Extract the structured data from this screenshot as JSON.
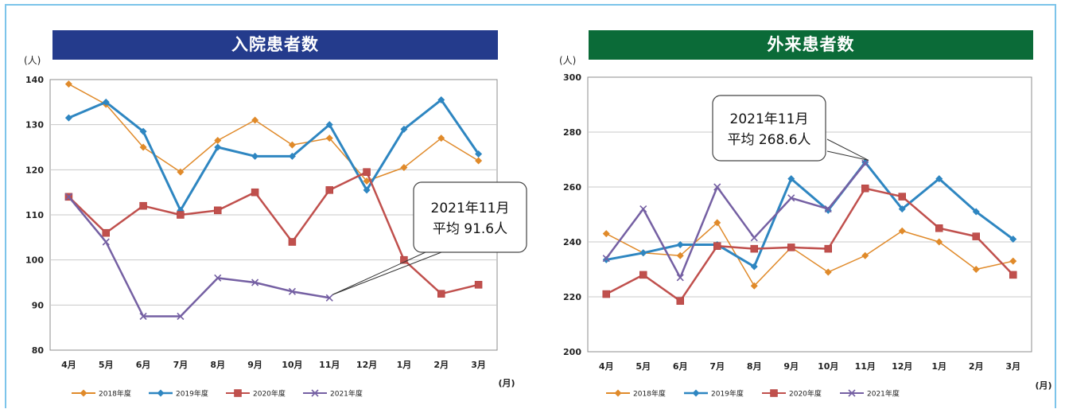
{
  "charts": [
    {
      "banner": "入院患者数",
      "banner_color": "#243b8c",
      "y_unit": "(人)",
      "x_unit": "(月)",
      "callout": [
        "2021年11月",
        "平均 91.6人"
      ]
    },
    {
      "banner": "外来患者数",
      "banner_color": "#0b6b38",
      "y_unit": "(人)",
      "x_unit": "(月)",
      "callout": [
        "2021年11月",
        "平均 268.6人"
      ]
    }
  ],
  "chart_data": [
    {
      "type": "line",
      "title": "入院患者数",
      "categories": [
        "4月",
        "5月",
        "6月",
        "7月",
        "8月",
        "9月",
        "10月",
        "11月",
        "12月",
        "1月",
        "2月",
        "3月"
      ],
      "ylim": [
        80,
        140
      ],
      "yticks": [
        80,
        90,
        100,
        110,
        120,
        130,
        140
      ],
      "grid": true,
      "legend_position": "bottom-left",
      "series": [
        {
          "name": "2018年度",
          "color": "#e08a2a",
          "marker": "diamond",
          "values": [
            139,
            134.5,
            125,
            119.5,
            126.5,
            131,
            125.5,
            127,
            117.5,
            120.5,
            127,
            122
          ]
        },
        {
          "name": "2019年度",
          "color": "#2e86c1",
          "marker": "diamond",
          "values": [
            131.5,
            135,
            128.5,
            111,
            125,
            123,
            123,
            130,
            115.5,
            129,
            135.5,
            123.5
          ]
        },
        {
          "name": "2020年度",
          "color": "#c0504d",
          "marker": "square",
          "values": [
            114,
            106,
            112,
            110,
            111,
            115,
            104,
            115.5,
            119.5,
            100,
            92.5,
            94.5
          ]
        },
        {
          "name": "2021年度",
          "color": "#7560a3",
          "marker": "x",
          "values": [
            114,
            104,
            87.5,
            87.5,
            96,
            95,
            93,
            91.6,
            null,
            null,
            null,
            null
          ]
        }
      ],
      "annotation": {
        "text": [
          "2021年11月",
          "平均 91.6人"
        ],
        "target_category": "11月",
        "target_value": 91.6
      }
    },
    {
      "type": "line",
      "title": "外来患者数",
      "categories": [
        "4月",
        "5月",
        "6月",
        "7月",
        "8月",
        "9月",
        "10月",
        "11月",
        "12月",
        "1月",
        "2月",
        "3月"
      ],
      "ylim": [
        200,
        300
      ],
      "yticks": [
        200,
        220,
        240,
        260,
        280,
        300
      ],
      "grid": true,
      "legend_position": "bottom-left",
      "series": [
        {
          "name": "2018年度",
          "color": "#e08a2a",
          "marker": "diamond",
          "values": [
            243,
            236,
            235,
            247,
            224,
            238,
            229,
            235,
            244,
            240,
            230,
            233
          ]
        },
        {
          "name": "2019年度",
          "color": "#2e86c1",
          "marker": "diamond",
          "values": [
            233.5,
            236,
            239,
            239,
            231,
            263,
            251.5,
            269,
            252,
            263,
            251,
            241
          ]
        },
        {
          "name": "2020年度",
          "color": "#c0504d",
          "marker": "square",
          "values": [
            221,
            228,
            218.5,
            238.5,
            237.5,
            238,
            237.5,
            259.5,
            256.5,
            245,
            242,
            228
          ]
        },
        {
          "name": "2021年度",
          "color": "#7560a3",
          "marker": "x",
          "values": [
            234,
            252,
            227,
            260,
            241.5,
            256,
            252,
            268.6,
            null,
            null,
            null,
            null
          ]
        }
      ],
      "annotation": {
        "text": [
          "2021年11月",
          "平均 268.6人"
        ],
        "target_category": "11月",
        "target_value": 268.6
      }
    }
  ]
}
